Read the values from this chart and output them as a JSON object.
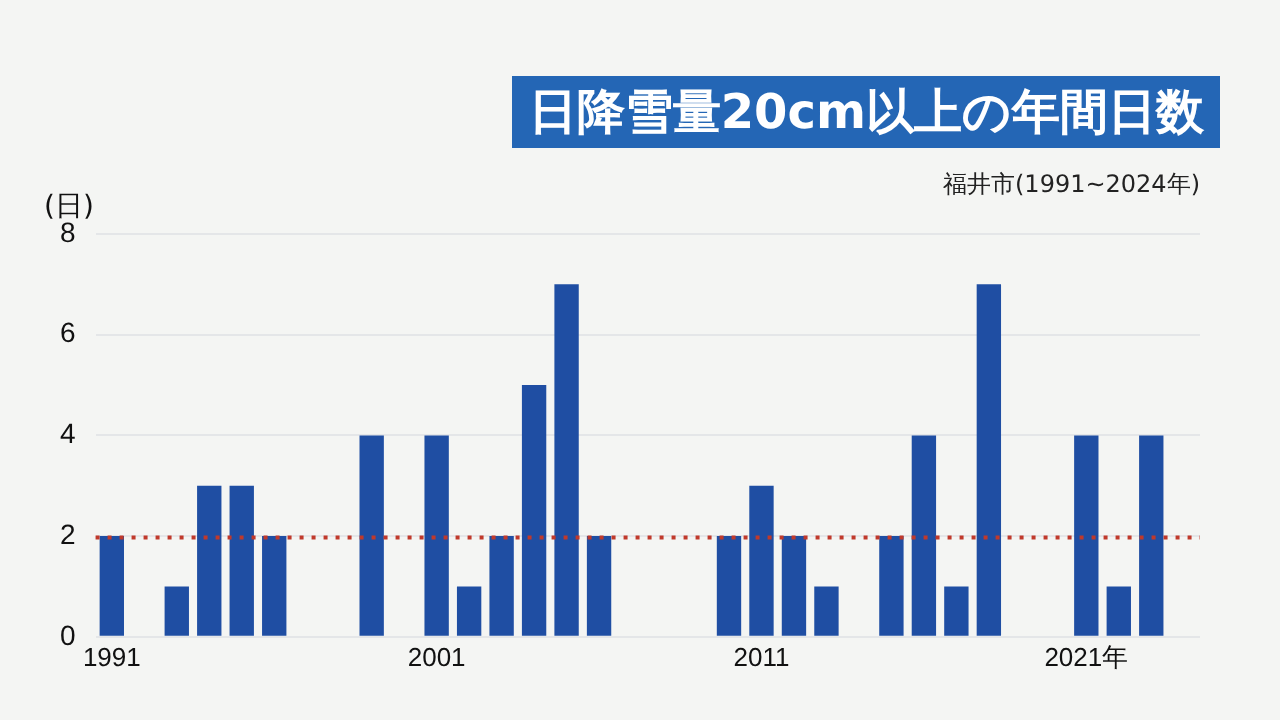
{
  "chart_data": {
    "type": "bar",
    "title": "日降雪量20cm以上の年間日数",
    "subtitle": "福井市(1991~2024年)",
    "ylabel": "(日)",
    "categories": [
      "1991",
      null,
      null,
      null,
      null,
      null,
      null,
      null,
      null,
      null,
      "2001",
      null,
      null,
      null,
      null,
      null,
      null,
      null,
      null,
      null,
      "2011",
      null,
      null,
      null,
      null,
      null,
      null,
      null,
      null,
      null,
      "2021年",
      null,
      null,
      null
    ],
    "values": [
      2,
      0,
      1,
      3,
      3,
      2,
      0,
      0,
      4,
      0,
      4,
      1,
      2,
      5,
      7,
      2,
      0,
      0,
      0,
      2,
      3,
      2,
      1,
      0,
      2,
      4,
      1,
      7,
      0,
      0,
      4,
      1,
      4,
      0
    ],
    "color": "#1f4ea3",
    "ylim": [
      0,
      8
    ],
    "yticks": [
      0,
      2,
      4,
      6,
      8
    ],
    "grid": "y",
    "ref_lines": [
      {
        "axis": "y",
        "value": 1.97,
        "color": "#c0392b",
        "line_style": "dotted"
      }
    ]
  }
}
